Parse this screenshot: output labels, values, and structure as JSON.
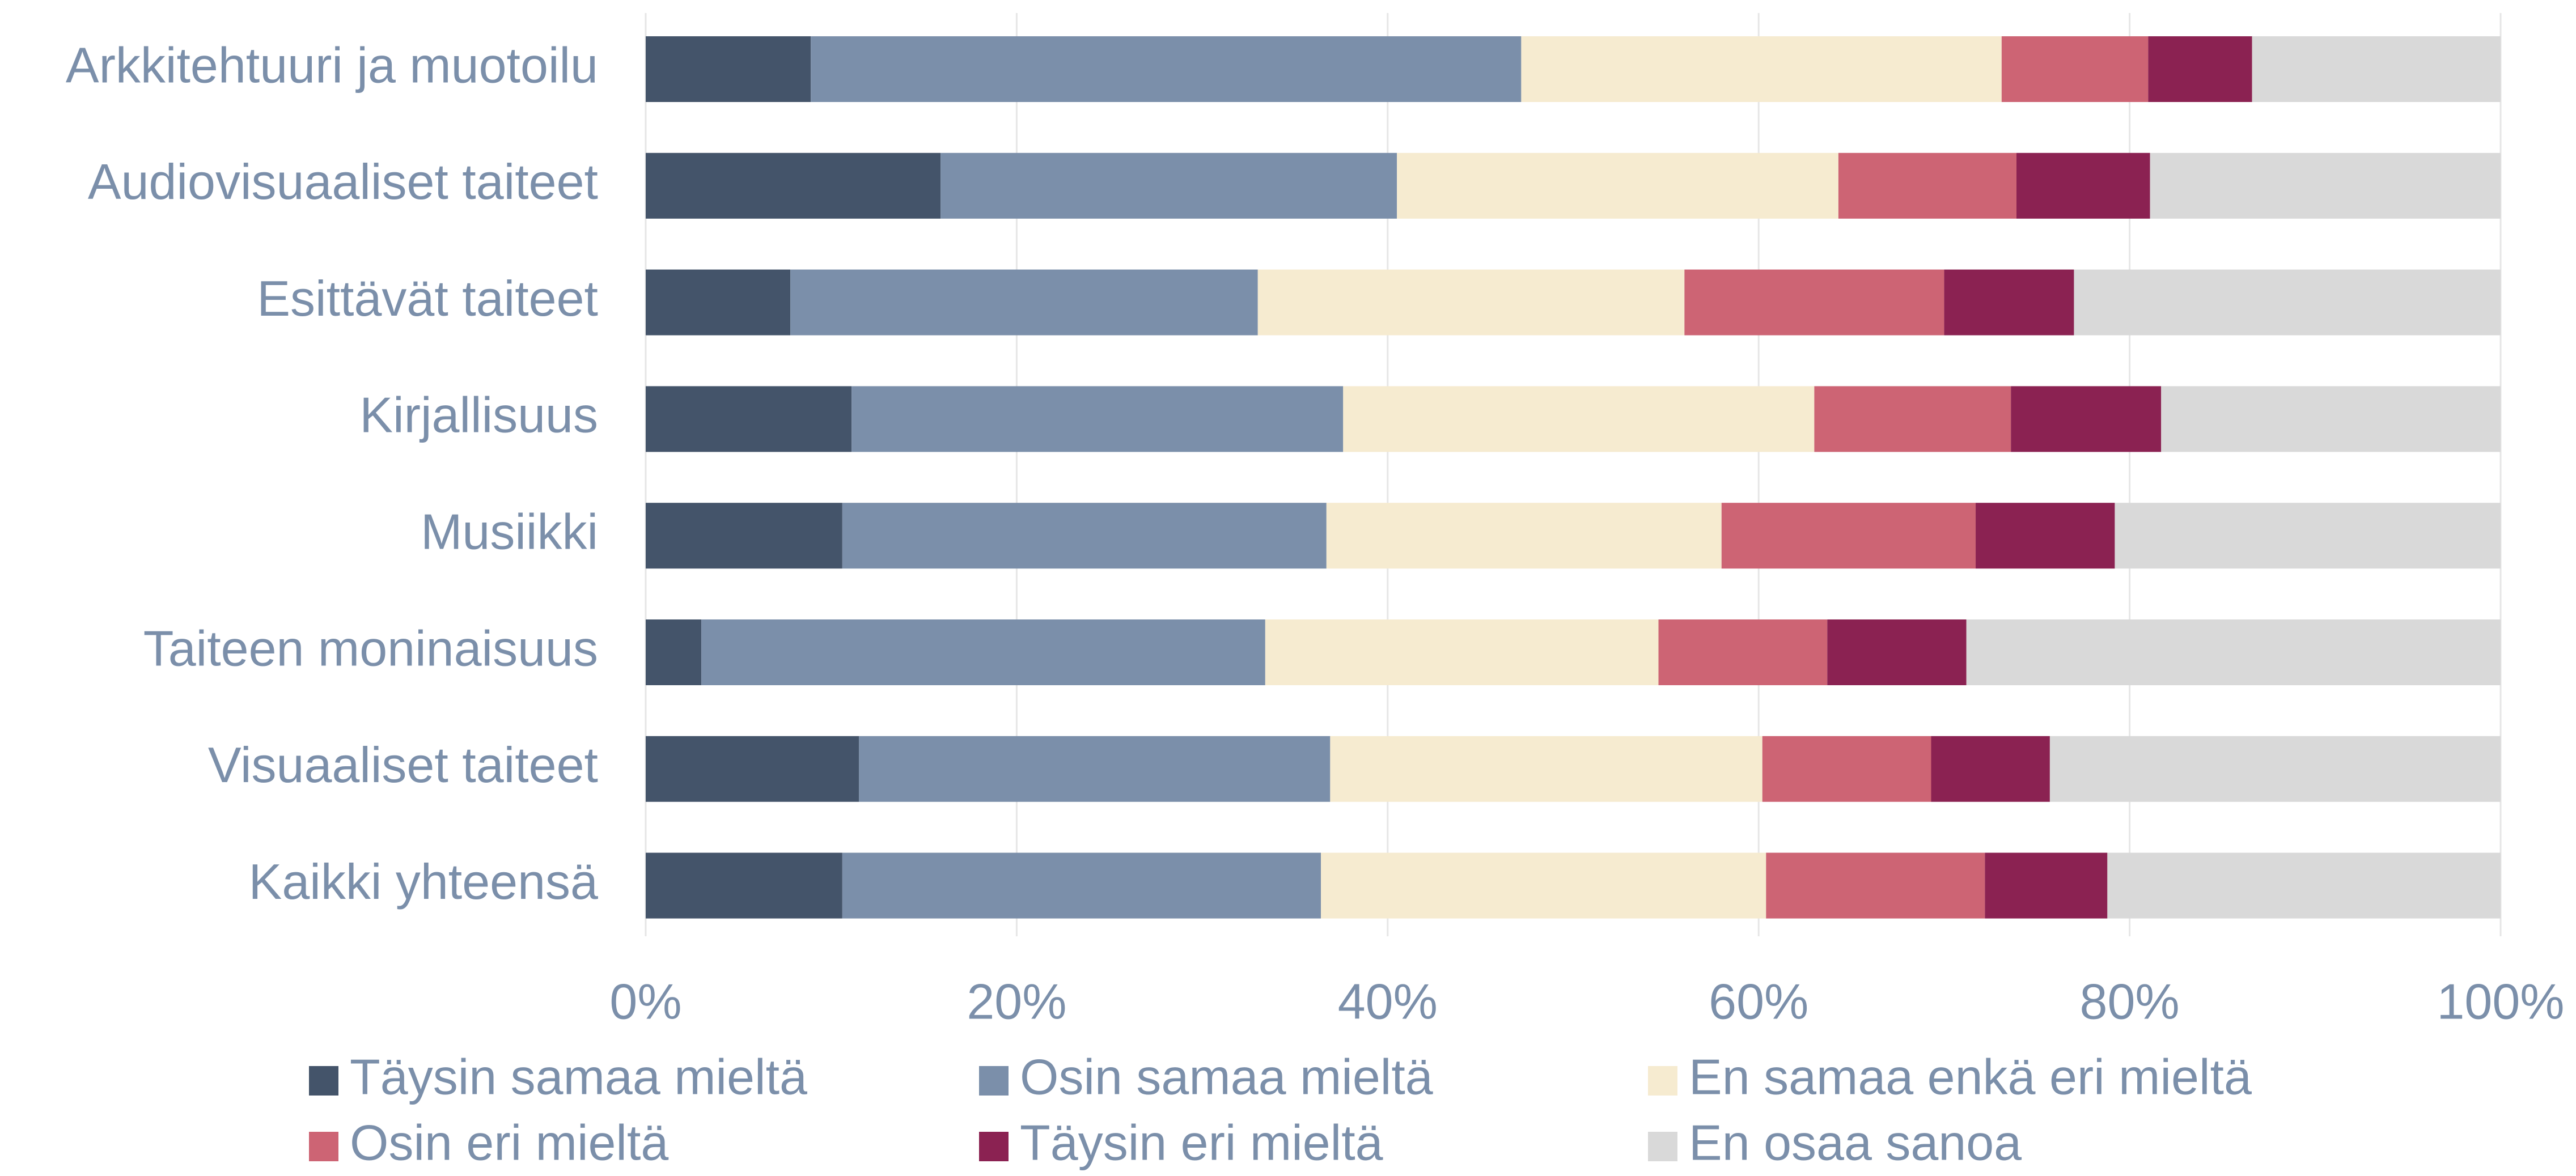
{
  "chart_data": {
    "type": "stacked_barh",
    "categories": [
      "Arkkitehtuuri ja muotoilu",
      "Audiovisuaaliset taiteet",
      "Esittävät taiteet",
      "Kirjallisuus",
      "Musiikki",
      "Taiteen moninaisuus",
      "Visuaaliset taiteet",
      "Kaikki yhteensä"
    ],
    "series": [
      {
        "name": "Täysin samaa mieltä",
        "color": "#44546a",
        "values": [
          8.9,
          15.9,
          7.8,
          11.1,
          10.6,
          3.0,
          11.5,
          10.6
        ]
      },
      {
        "name": "Osin samaa mieltä",
        "color": "#7b8faa",
        "values": [
          38.3,
          24.6,
          25.2,
          26.5,
          26.1,
          30.4,
          25.4,
          25.8
        ]
      },
      {
        "name": "En samaa enkä eri mieltä",
        "color": "#f6ebd0",
        "values": [
          25.9,
          23.8,
          23.0,
          25.4,
          21.3,
          21.2,
          23.3,
          24.0
        ]
      },
      {
        "name": "Osin eri mieltä",
        "color": "#cd6474",
        "values": [
          7.9,
          9.6,
          14.0,
          10.6,
          13.7,
          9.1,
          9.1,
          11.8
        ]
      },
      {
        "name": "Täysin eri mieltä",
        "color": "#8b2252",
        "values": [
          5.6,
          7.2,
          7.0,
          8.1,
          7.5,
          7.5,
          6.4,
          6.6
        ]
      },
      {
        "name": "En osaa sanoa",
        "color": "#d9d9d9",
        "values": [
          13.4,
          18.9,
          23.0,
          18.3,
          20.8,
          28.8,
          24.3,
          21.2
        ]
      }
    ],
    "xlim": [
      0,
      100
    ],
    "xticks": [
      {
        "value": 0,
        "label": "0%"
      },
      {
        "value": 20,
        "label": "20%"
      },
      {
        "value": 40,
        "label": "40%"
      },
      {
        "value": 60,
        "label": "60%"
      },
      {
        "value": 80,
        "label": "80%"
      },
      {
        "value": 100,
        "label": "100%"
      }
    ],
    "grid": true,
    "legend": "bottom"
  }
}
